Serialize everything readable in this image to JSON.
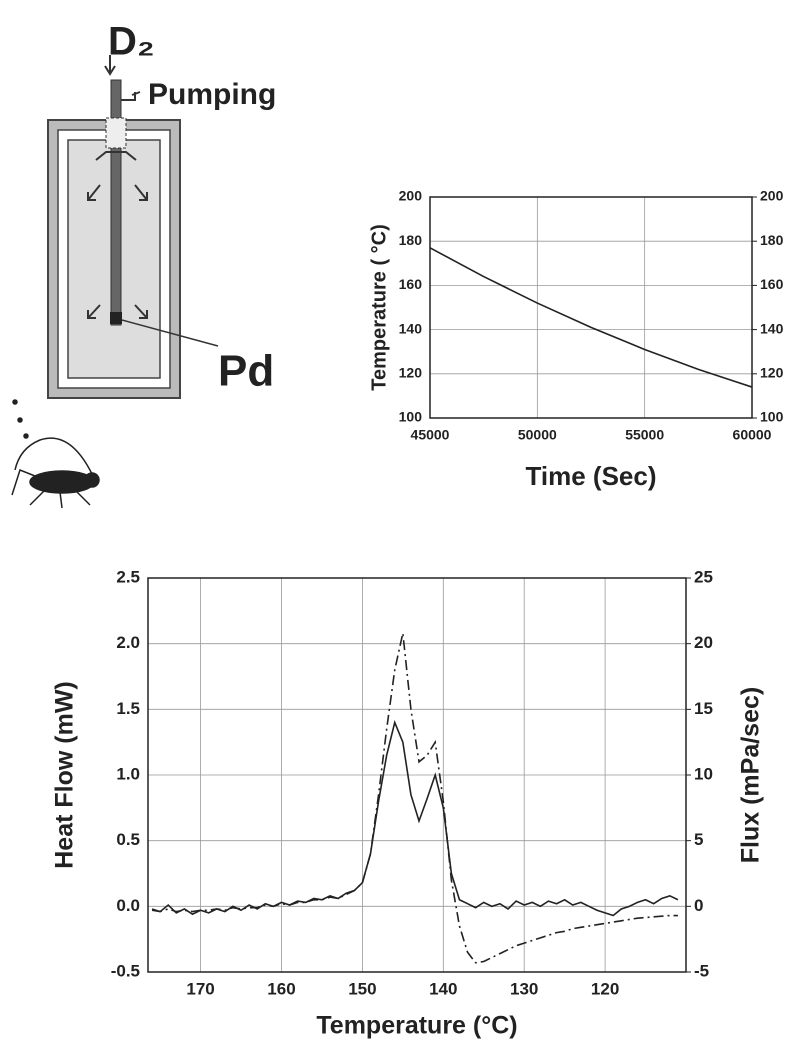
{
  "diagram": {
    "inlet_label": "D₂",
    "pumping_label": "Pumping",
    "sample_label": "Pd"
  },
  "chart_data": [
    {
      "type": "line",
      "xlabel": "Time (Sec)",
      "ylabel": "Temperature ( °C)",
      "x": [
        45000,
        47500,
        50000,
        52500,
        55000,
        57500,
        60000
      ],
      "series": [
        {
          "color": "#222222",
          "values": [
            177,
            164,
            152,
            141,
            131,
            122,
            114
          ]
        }
      ],
      "xlim": [
        45000,
        60000
      ],
      "xticks": [
        45000,
        50000,
        55000,
        60000
      ],
      "ylim": [
        100,
        200
      ],
      "yticks": [
        100,
        120,
        140,
        160,
        180,
        200
      ],
      "y2lim": [
        100,
        200
      ],
      "y2ticks": [
        100,
        120,
        140,
        160,
        180,
        200
      ],
      "grid": true
    },
    {
      "type": "line",
      "xlabel": "Temperature (°C)",
      "ylabel": "Heat Flow (mW)",
      "y2label": "Flux (mPa/sec)",
      "x": [
        176,
        175,
        174,
        173,
        172,
        171,
        170,
        169,
        168,
        167,
        166,
        165,
        164,
        163,
        162,
        161,
        160,
        159,
        158,
        157,
        156,
        155,
        154,
        153,
        152,
        151,
        150,
        149,
        148,
        147,
        146,
        145,
        144,
        143,
        142,
        141,
        140,
        139,
        138,
        137,
        136,
        135,
        134,
        133,
        132,
        131,
        130,
        129,
        128,
        127,
        126,
        125,
        124,
        123,
        122,
        121,
        120,
        119,
        118,
        117,
        116,
        115,
        114,
        113,
        112,
        111
      ],
      "series": [
        {
          "color": "#222222",
          "dash": "solid",
          "values": [
            -0.02,
            -0.04,
            0.01,
            -0.05,
            -0.02,
            -0.06,
            -0.03,
            -0.05,
            -0.02,
            -0.04,
            0.0,
            -0.03,
            0.01,
            -0.02,
            0.02,
            0.0,
            0.03,
            0.01,
            0.04,
            0.03,
            0.06,
            0.05,
            0.08,
            0.06,
            0.1,
            0.12,
            0.18,
            0.4,
            0.8,
            1.15,
            1.4,
            1.25,
            0.85,
            0.65,
            0.82,
            1.0,
            0.75,
            0.25,
            0.05,
            0.02,
            -0.01,
            0.03,
            0.0,
            0.02,
            -0.02,
            0.04,
            0.01,
            0.03,
            0.0,
            0.04,
            0.02,
            0.05,
            0.01,
            0.03,
            0.0,
            -0.03,
            -0.05,
            -0.07,
            -0.02,
            0.0,
            0.03,
            0.05,
            0.02,
            0.06,
            0.08,
            0.05
          ]
        },
        {
          "color": "#222222",
          "dash": "dashdot",
          "axis": "y2",
          "values": [
            -0.3,
            -0.4,
            -0.2,
            -0.4,
            -0.3,
            -0.4,
            -0.3,
            -0.3,
            -0.2,
            -0.3,
            -0.1,
            -0.2,
            -0.1,
            -0.1,
            0.1,
            0.0,
            0.2,
            0.1,
            0.3,
            0.3,
            0.5,
            0.5,
            0.7,
            0.6,
            0.9,
            1.2,
            1.8,
            4.0,
            8.5,
            13.5,
            18.0,
            20.8,
            15.0,
            11.0,
            11.5,
            12.5,
            8.0,
            2.0,
            -1.5,
            -3.5,
            -4.3,
            -4.2,
            -3.9,
            -3.6,
            -3.3,
            -3.0,
            -2.8,
            -2.6,
            -2.4,
            -2.2,
            -2.0,
            -1.9,
            -1.7,
            -1.6,
            -1.5,
            -1.4,
            -1.3,
            -1.2,
            -1.1,
            -1.0,
            -0.9,
            -0.85,
            -0.8,
            -0.75,
            -0.7,
            -0.7
          ]
        }
      ],
      "xlim": [
        176.5,
        110
      ],
      "xticks": [
        170,
        160,
        150,
        140,
        130,
        120
      ],
      "ylim": [
        -0.5,
        2.5
      ],
      "yticks": [
        -0.5,
        {
          "value": 0,
          "label": "0.0"
        },
        0.5,
        {
          "value": 1,
          "label": "1.0"
        },
        1.5,
        {
          "value": 2,
          "label": "2.0"
        },
        2.5
      ],
      "y2lim": [
        -5,
        25
      ],
      "y2ticks": [
        -5,
        0,
        5,
        10,
        15,
        20,
        25
      ],
      "grid": true
    }
  ]
}
